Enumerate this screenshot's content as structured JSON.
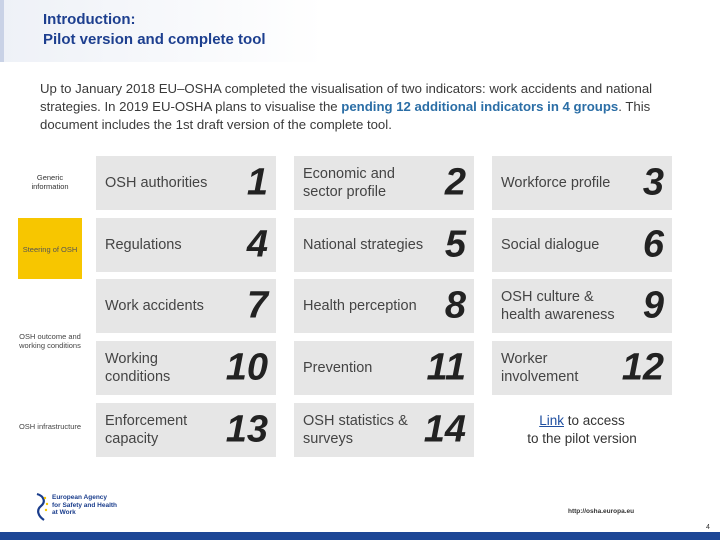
{
  "header": {
    "title_line1": "Introduction:",
    "title_line2": "Pilot version and complete tool"
  },
  "intro": {
    "text_before": "Up to January 2018 EU–OSHA completed the visualisation of two indicators: work accidents and national strategies. In 2019 EU-OSHA plans to visualise the ",
    "highlight": "pending 12 additional indicators in 4 groups",
    "text_after": ". This document includes the 1st draft version of the complete tool."
  },
  "groups": {
    "generic": "Generic information",
    "steering": "Steering of OSH",
    "outcomes": "OSH outcome and working conditions",
    "infrastructure": "OSH infrastructure"
  },
  "indicators": [
    {
      "label": "OSH authorities",
      "number": "1"
    },
    {
      "label": "Economic and sector profile",
      "number": "2"
    },
    {
      "label": "Workforce profile",
      "number": "3"
    },
    {
      "label": "Regulations",
      "number": "4"
    },
    {
      "label": "National strategies",
      "number": "5"
    },
    {
      "label": "Social dialogue",
      "number": "6"
    },
    {
      "label": "Work accidents",
      "number": "7"
    },
    {
      "label": "Health perception",
      "number": "8"
    },
    {
      "label": "OSH culture & health awareness",
      "number": "9"
    },
    {
      "label": "Working conditions",
      "number": "10"
    },
    {
      "label": "Prevention",
      "number": "11"
    },
    {
      "label": "Worker involvement",
      "number": "12"
    },
    {
      "label": "Enforcement capacity",
      "number": "13"
    },
    {
      "label": "OSH statistics & surveys",
      "number": "14"
    }
  ],
  "pilot": {
    "link_text": "Link",
    "text_after": " to access",
    "line2": "to the pilot version"
  },
  "footer": {
    "logo_line1": "European Agency",
    "logo_line2": "for Safety and Health",
    "logo_line3": "at Work",
    "url": "http://osha.europa.eu",
    "page_number": "4"
  },
  "colors": {
    "title": "#1d3f8f",
    "highlight": "#2b6ea6",
    "tile": "#e6e6e6",
    "steering": "#f7c600",
    "footer_bar": "#1d4696"
  }
}
